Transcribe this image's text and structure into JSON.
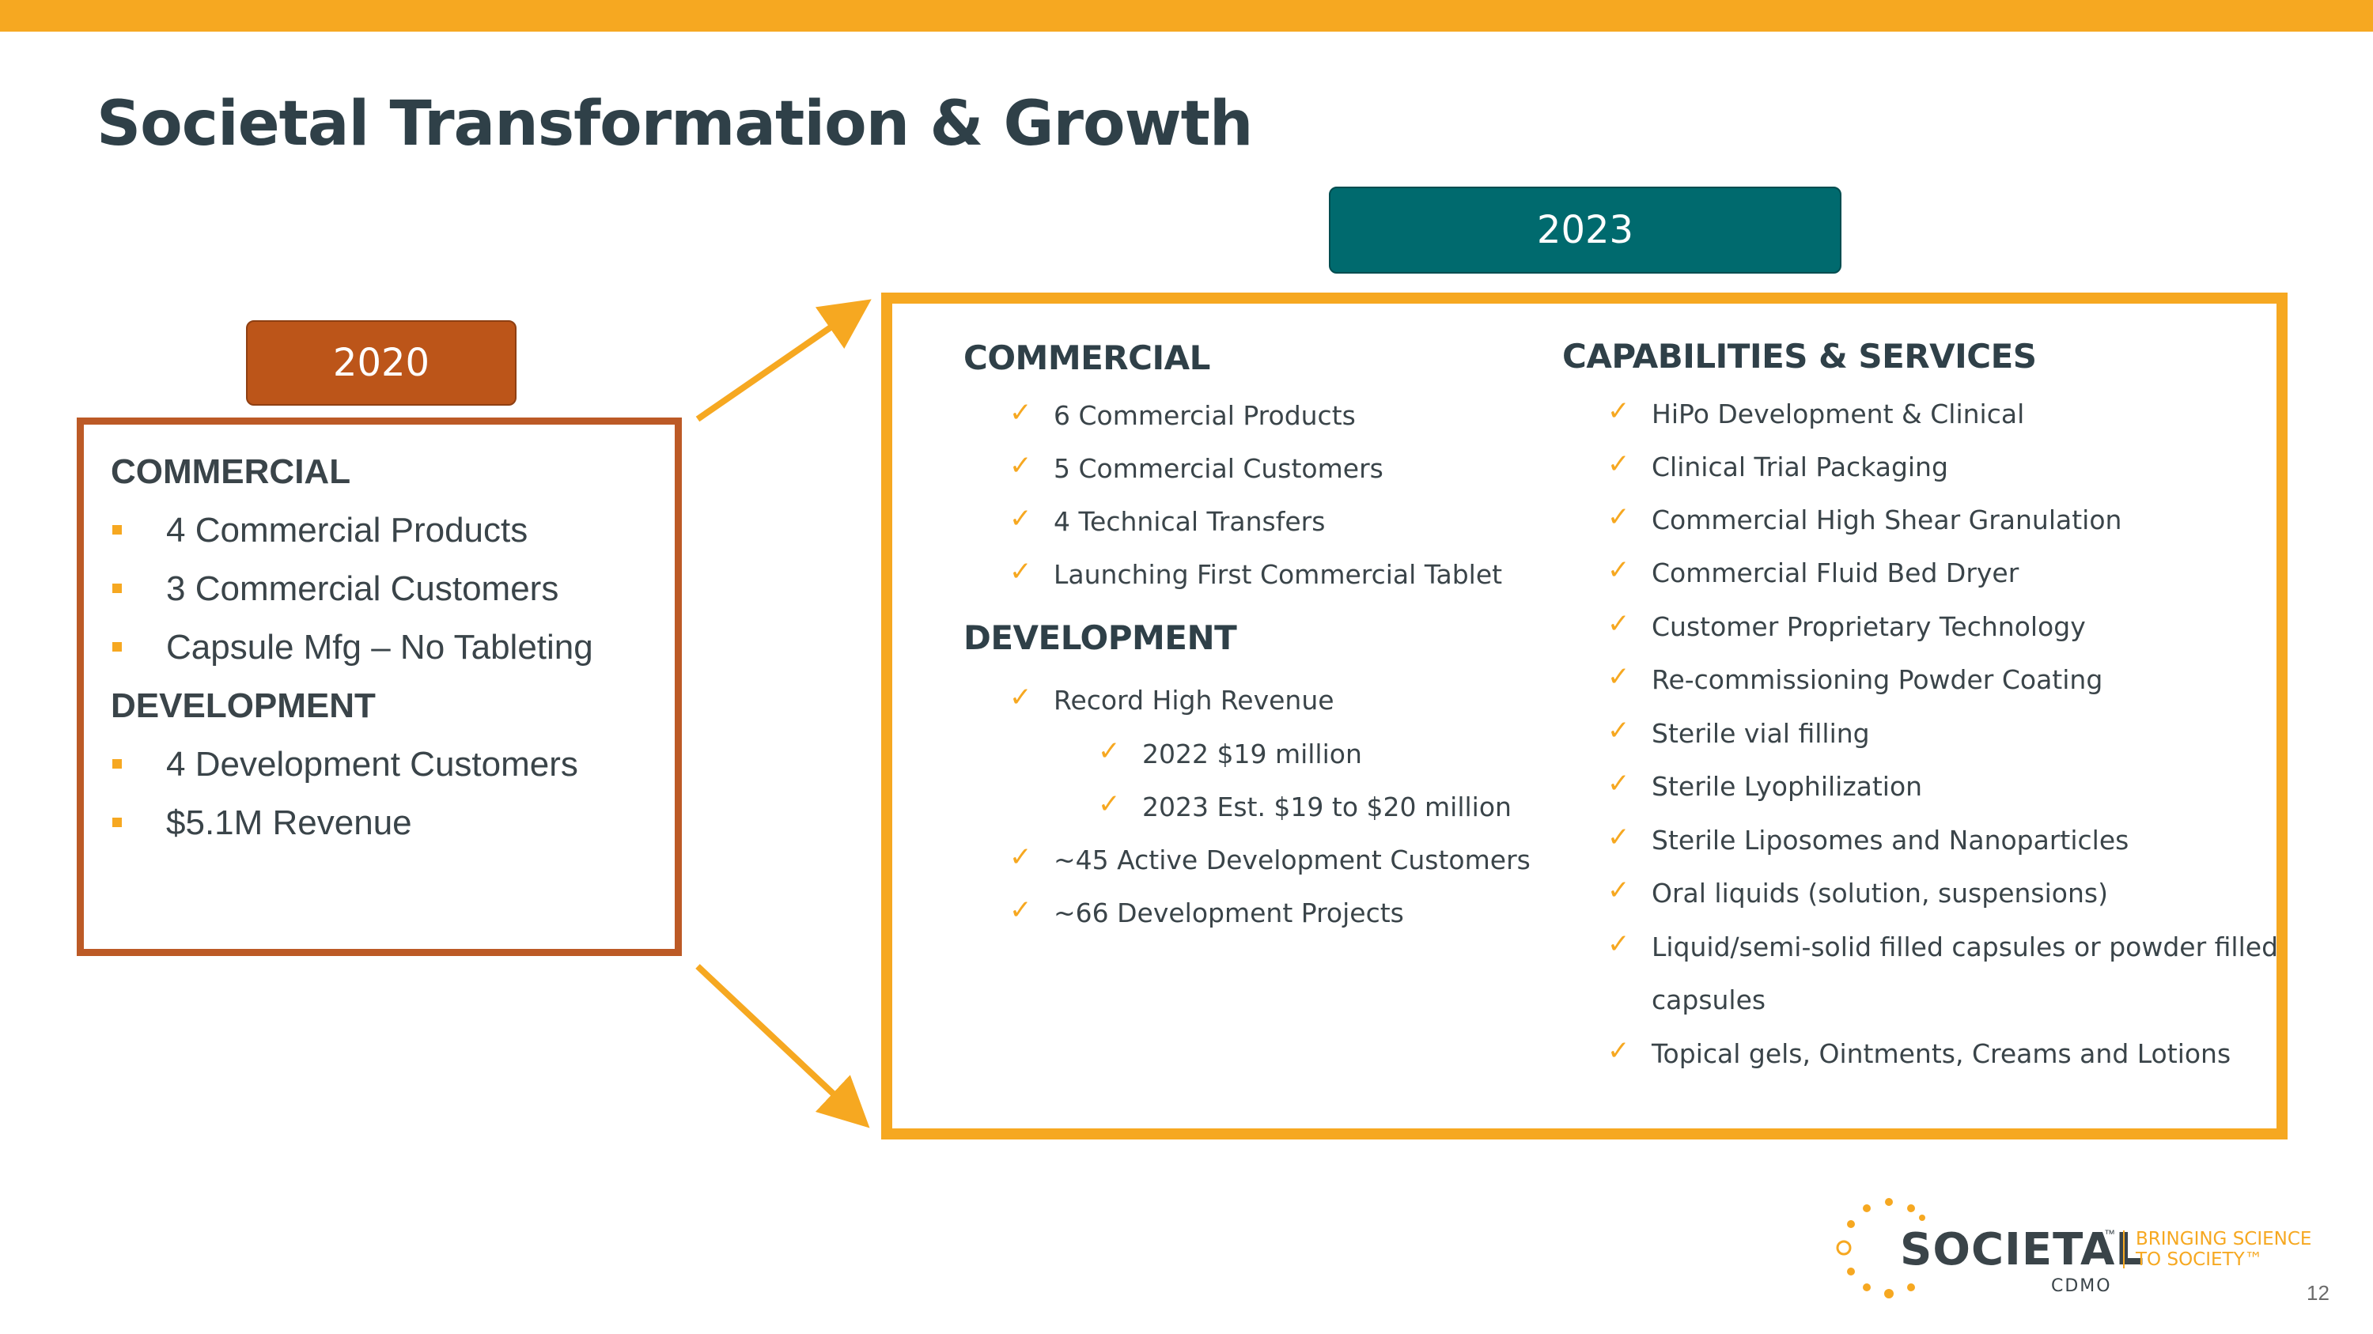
{
  "title": "Societal Transformation & Growth",
  "badge_2023": "2023",
  "badge_2020": "2020",
  "left": {
    "commercial_heading": "COMMERCIAL",
    "commercial_items": [
      "4 Commercial Products",
      "3 Commercial Customers",
      "Capsule Mfg – No Tableting"
    ],
    "development_heading": "DEVELOPMENT",
    "development_items": [
      "4 Development Customers",
      "$5.1M Revenue"
    ]
  },
  "right": {
    "commercial_heading": "COMMERCIAL",
    "commercial_items": [
      "6 Commercial Products",
      "5 Commercial Customers",
      "4 Technical Transfers",
      "Launching First Commercial Tablet"
    ],
    "development_heading": "DEVELOPMENT",
    "development_items": [
      "Record High Revenue",
      "2022 $19 million",
      "2023 Est. $19 to $20 million",
      "~45 Active Development Customers",
      "~66 Development Projects"
    ],
    "capabilities_heading": "CAPABILITIES & SERVICES",
    "capabilities_items": [
      "HiPo Development & Clinical",
      "Clinical Trial Packaging",
      "Commercial High Shear Granulation",
      "Commercial Fluid Bed Dryer",
      "Customer Proprietary Technology",
      "Re-commissioning Powder Coating",
      "Sterile vial filling",
      "Sterile Lyophilization",
      "Sterile Liposomes and Nanoparticles",
      "Oral liquids (solution, suspensions)",
      "Liquid/semi-solid filled capsules or powder filled",
      "capsules",
      "Topical gels, Ointments, Creams and Lotions"
    ]
  },
  "logo": {
    "name": "SOCIETAL",
    "tm": "™",
    "sub": "CDMO",
    "tagline_line1": "BRINGING SCIENCE",
    "tagline_line2": "TO SOCIETY™"
  },
  "page_number": "12",
  "colors": {
    "accent": "#F6A821",
    "teal": "#006A6E",
    "rust": "#BC5519",
    "text": "#2F4048"
  }
}
